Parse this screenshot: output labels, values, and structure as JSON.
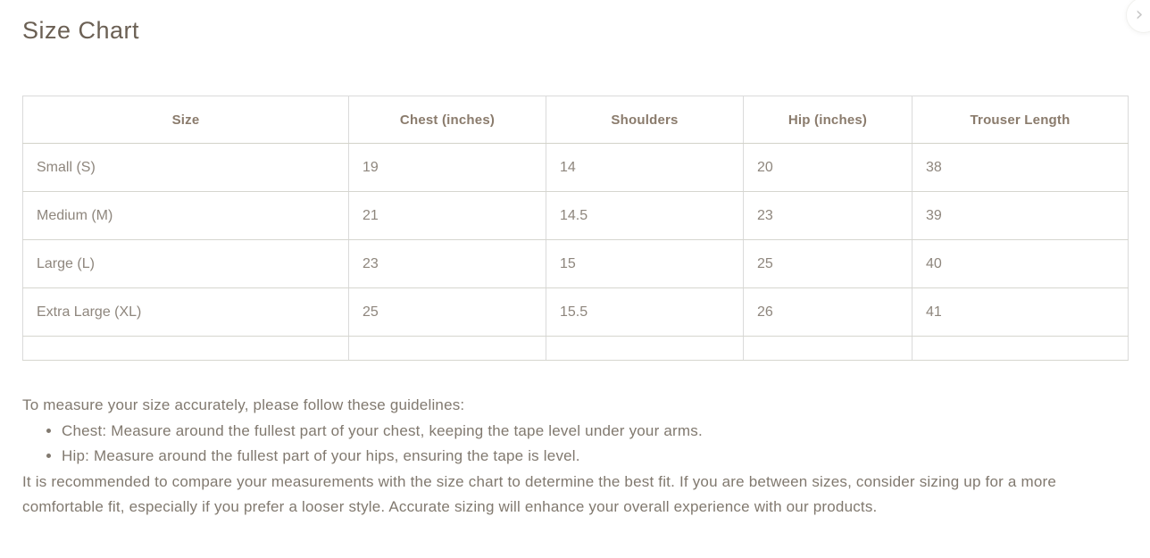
{
  "page": {
    "title": "Size Chart"
  },
  "nav": {
    "next_icon_glyph": "›"
  },
  "table": {
    "headers": [
      "Size",
      "Chest (inches)",
      "Shoulders",
      "Hip (inches)",
      "Trouser Length"
    ],
    "rows": [
      [
        "Small (S)",
        "19",
        "14",
        "20",
        "38"
      ],
      [
        "Medium (M)",
        "21",
        "14.5",
        "23",
        "39"
      ],
      [
        "Large (L)",
        "23",
        "15",
        "25",
        "40"
      ],
      [
        "Extra Large (XL)",
        "25",
        "15.5",
        "26",
        "41"
      ],
      [
        "",
        "",
        "",
        "",
        ""
      ]
    ]
  },
  "guidelines": {
    "intro": "To measure your size accurately, please follow these guidelines:",
    "bullets": [
      "Chest: Measure around the fullest part of your chest, keeping the tape level under your arms.",
      "Hip: Measure around the fullest part of your hips, ensuring the tape is level."
    ],
    "note": "It is recommended to compare your measurements with the size chart to determine the best fit. If you are between sizes, consider sizing up for a more comfortable fit, especially if you prefer a looser style. Accurate sizing will enhance your overall experience with our products."
  },
  "colors": {
    "heading_text": "#6b6054",
    "table_header_text": "#8a7b6c",
    "cell_text": "#8e867d",
    "body_text": "#81796f",
    "table_border": "#dadada",
    "background": "#ffffff"
  }
}
